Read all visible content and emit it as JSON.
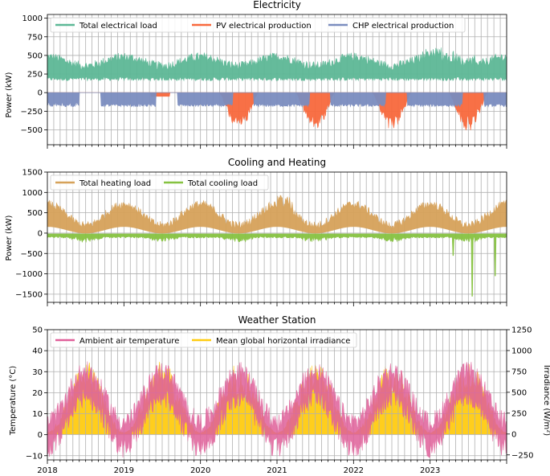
{
  "chart_data": [
    {
      "type": "line",
      "title": "Electricity",
      "ylabel": "Power (kW)",
      "ylim": [
        -700,
        1050
      ],
      "yticks": [
        -500,
        -250,
        0,
        250,
        500,
        750,
        1000
      ],
      "ytick_labels": [
        "−500",
        "−250",
        "0",
        "250",
        "500",
        "750",
        "1000"
      ],
      "x_start_year": 2018,
      "x_end_year": 2024,
      "series": [
        {
          "name": "Total electrical load",
          "color": "#5db896",
          "base": 330,
          "amp": 70,
          "noise": 180,
          "sign": 1,
          "mode": "load"
        },
        {
          "name": "PV electrical production",
          "color": "#f8693d",
          "peak": -500,
          "sign": -1,
          "mode": "pv"
        },
        {
          "name": "CHP electrical production",
          "color": "#7b8dbf",
          "level": -180,
          "sign": -1,
          "mode": "chp"
        }
      ]
    },
    {
      "type": "line",
      "title": "Cooling and Heating",
      "ylabel": "Power (kW)",
      "ylim": [
        -1700,
        1500
      ],
      "yticks": [
        -1500,
        -1000,
        -500,
        0,
        500,
        1000,
        1500
      ],
      "ytick_labels": [
        "−1500",
        "−1000",
        "−500",
        "0",
        "500",
        "1000",
        "1500"
      ],
      "x_start_year": 2018,
      "x_end_year": 2024,
      "series": [
        {
          "name": "Total heating load",
          "color": "#d6a25a",
          "mode": "heat"
        },
        {
          "name": "Total cooling load",
          "color": "#86c241",
          "mode": "cool"
        }
      ]
    },
    {
      "type": "line",
      "title": "Weather Station",
      "ylabel": "Temperature (°C)",
      "ylabel_right": "Irradiance (W/m²)",
      "ylim": [
        -12,
        50
      ],
      "ylim_right": [
        -310,
        1250
      ],
      "yticks": [
        -10,
        0,
        10,
        20,
        30,
        40,
        50
      ],
      "ytick_labels": [
        "−10",
        "0",
        "10",
        "20",
        "30",
        "40",
        "50"
      ],
      "yticks_right": [
        -250,
        0,
        250,
        500,
        750,
        1000,
        1250
      ],
      "ytick_labels_right": [
        "−250",
        "0",
        "250",
        "500",
        "750",
        "1000",
        "1250"
      ],
      "x_start_year": 2018,
      "x_end_year": 2024,
      "xticks": [
        "2018",
        "2019",
        "2020",
        "2021",
        "2022",
        "2023"
      ],
      "series": [
        {
          "name": "Ambient air temperature",
          "color": "#e0609a",
          "mode": "temp"
        },
        {
          "name": "Mean global horizontal irradiance",
          "color": "#ffcc11",
          "mode": "irr"
        }
      ]
    }
  ]
}
